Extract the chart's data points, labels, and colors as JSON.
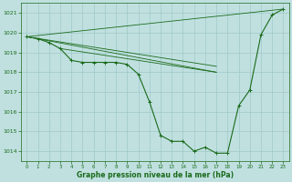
{
  "bg_color": "#c0e0e0",
  "grid_color": "#a0c8c8",
  "line_color": "#1a6b1a",
  "xlabel": "Graphe pression niveau de la mer (hPa)",
  "xlabel_color": "#1a6b1a",
  "xlim": [
    -0.5,
    23.5
  ],
  "ylim": [
    1013.5,
    1021.5
  ],
  "yticks": [
    1014,
    1015,
    1016,
    1017,
    1018,
    1019,
    1020,
    1021
  ],
  "xticks": [
    0,
    1,
    2,
    3,
    4,
    5,
    6,
    7,
    8,
    9,
    10,
    11,
    12,
    13,
    14,
    15,
    16,
    17,
    18,
    19,
    20,
    21,
    22,
    23
  ],
  "main_x": [
    0,
    1,
    2,
    3,
    4,
    5,
    6,
    7,
    8,
    9,
    10,
    11,
    12,
    13,
    14,
    15,
    16,
    17,
    18,
    19,
    20,
    21,
    22,
    23
  ],
  "main_y": [
    1019.8,
    1019.7,
    1019.5,
    1019.2,
    1018.6,
    1018.5,
    1018.5,
    1018.5,
    1018.5,
    1018.4,
    1017.9,
    1016.5,
    1014.8,
    1014.5,
    1014.5,
    1014.0,
    1014.2,
    1013.9,
    1013.9,
    1016.3,
    1017.1,
    1019.9,
    1020.9,
    1021.2
  ],
  "trend_lines": [
    {
      "x": [
        0,
        23
      ],
      "y": [
        1019.8,
        1021.2
      ]
    },
    {
      "x": [
        0,
        17
      ],
      "y": [
        1019.8,
        1018.0
      ]
    },
    {
      "x": [
        0,
        17
      ],
      "y": [
        1019.8,
        1018.3
      ]
    },
    {
      "x": [
        3,
        17
      ],
      "y": [
        1019.2,
        1018.0
      ]
    }
  ],
  "figsize": [
    3.2,
    2.0
  ],
  "dpi": 100
}
